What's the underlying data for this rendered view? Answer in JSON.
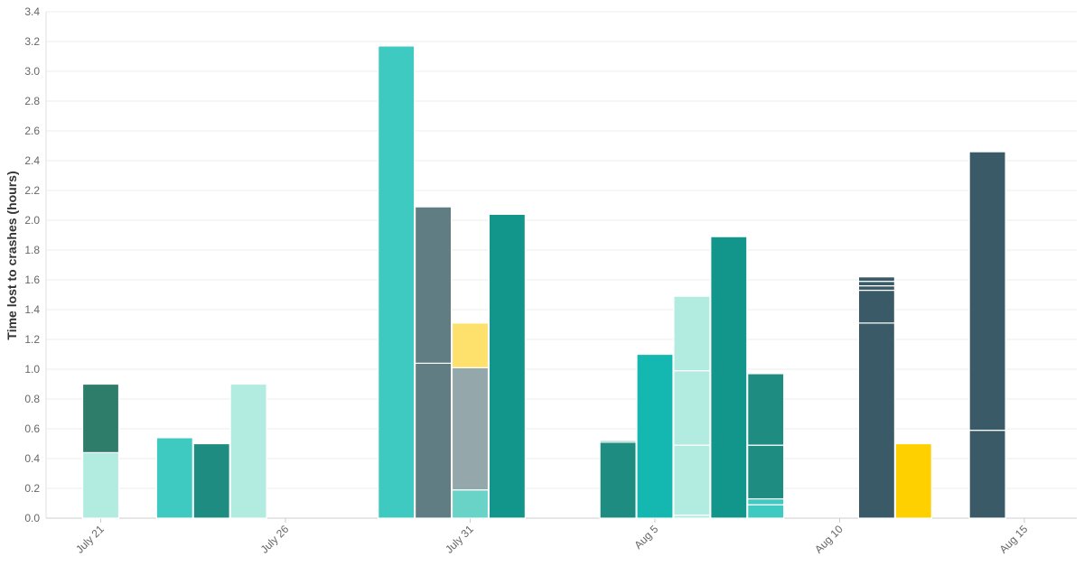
{
  "chart_data": {
    "type": "bar",
    "stacked": true,
    "title": "",
    "xlabel": "",
    "ylabel": "Time lost to crashes (hours)",
    "ylim": [
      0,
      3.4
    ],
    "y_ticks": [
      "0.0",
      "0.2",
      "0.4",
      "0.6",
      "0.8",
      "1.0",
      "1.2",
      "1.4",
      "1.6",
      "1.8",
      "2.0",
      "2.2",
      "2.4",
      "2.6",
      "2.8",
      "3.0",
      "3.2",
      "3.4"
    ],
    "x_axis": {
      "start_date": "July 19",
      "end_date": "Aug 16",
      "tick_labels": [
        {
          "label": "July 21",
          "day": 2
        },
        {
          "label": "July 26",
          "day": 7
        },
        {
          "label": "July 31",
          "day": 12
        },
        {
          "label": "Aug  5",
          "day": 17
        },
        {
          "label": "Aug 10",
          "day": 22
        },
        {
          "label": "Aug 15",
          "day": 27
        }
      ]
    },
    "grid": true,
    "legend": "none",
    "bars": [
      {
        "date": "July 21",
        "segments": [
          {
            "value": 0.44,
            "color": "#b2ebe0"
          },
          {
            "value": 0.46,
            "color": "#2e7d6b"
          }
        ]
      },
      {
        "date": "July 23",
        "segments": [
          {
            "value": 0.54,
            "color": "#3ec9c1"
          }
        ]
      },
      {
        "date": "July 24",
        "segments": [
          {
            "value": 0.5,
            "color": "#1e8c80"
          }
        ]
      },
      {
        "date": "July 25",
        "segments": [
          {
            "value": 0.9,
            "color": "#b2ebe0"
          }
        ]
      },
      {
        "date": "July 29",
        "segments": [
          {
            "value": 3.17,
            "color": "#3ec9c1"
          }
        ]
      },
      {
        "date": "July 30",
        "segments": [
          {
            "value": 1.04,
            "color": "#607d84"
          },
          {
            "value": 1.05,
            "color": "#607d84"
          }
        ]
      },
      {
        "date": "July 31",
        "segments": [
          {
            "value": 0.19,
            "color": "#6ad3c7"
          },
          {
            "value": 0.82,
            "color": "#94a7ab"
          },
          {
            "value": 0.3,
            "color": "#fde16c"
          }
        ]
      },
      {
        "date": "Aug 1",
        "segments": [
          {
            "value": 2.04,
            "color": "#12968b"
          }
        ]
      },
      {
        "date": "Aug 4",
        "segments": [
          {
            "value": 0.51,
            "color": "#1e8c80"
          },
          {
            "value": 0.01,
            "color": "#1e8c80"
          }
        ]
      },
      {
        "date": "Aug 5",
        "segments": [
          {
            "value": 1.1,
            "color": "#14b8b0"
          }
        ]
      },
      {
        "date": "Aug 6",
        "segments": [
          {
            "value": 0.02,
            "color": "#b2ebe0"
          },
          {
            "value": 0.47,
            "color": "#b2ebe0"
          },
          {
            "value": 0.5,
            "color": "#b2ebe0"
          },
          {
            "value": 0.5,
            "color": "#b2ebe0"
          }
        ]
      },
      {
        "date": "Aug 7",
        "segments": [
          {
            "value": 1.89,
            "color": "#12968b"
          }
        ]
      },
      {
        "date": "Aug 8",
        "segments": [
          {
            "value": 0.09,
            "color": "#3ec9c1"
          },
          {
            "value": 0.04,
            "color": "#3ec9c1"
          },
          {
            "value": 0.36,
            "color": "#1e8c80"
          },
          {
            "value": 0.48,
            "color": "#1e8c80"
          }
        ]
      },
      {
        "date": "Aug 11",
        "segments": [
          {
            "value": 1.31,
            "color": "#3a5a68"
          },
          {
            "value": 0.22,
            "color": "#3a5a68"
          },
          {
            "value": 0.03,
            "color": "#3a5a68"
          },
          {
            "value": 0.03,
            "color": "#3a5a68"
          },
          {
            "value": 0.03,
            "color": "#3a5a68"
          }
        ]
      },
      {
        "date": "Aug 12",
        "segments": [
          {
            "value": 0.5,
            "color": "#ffd000"
          }
        ]
      },
      {
        "date": "Aug 14",
        "segments": [
          {
            "value": 0.59,
            "color": "#3a5a68"
          },
          {
            "value": 1.87,
            "color": "#3a5a68"
          }
        ]
      }
    ]
  }
}
